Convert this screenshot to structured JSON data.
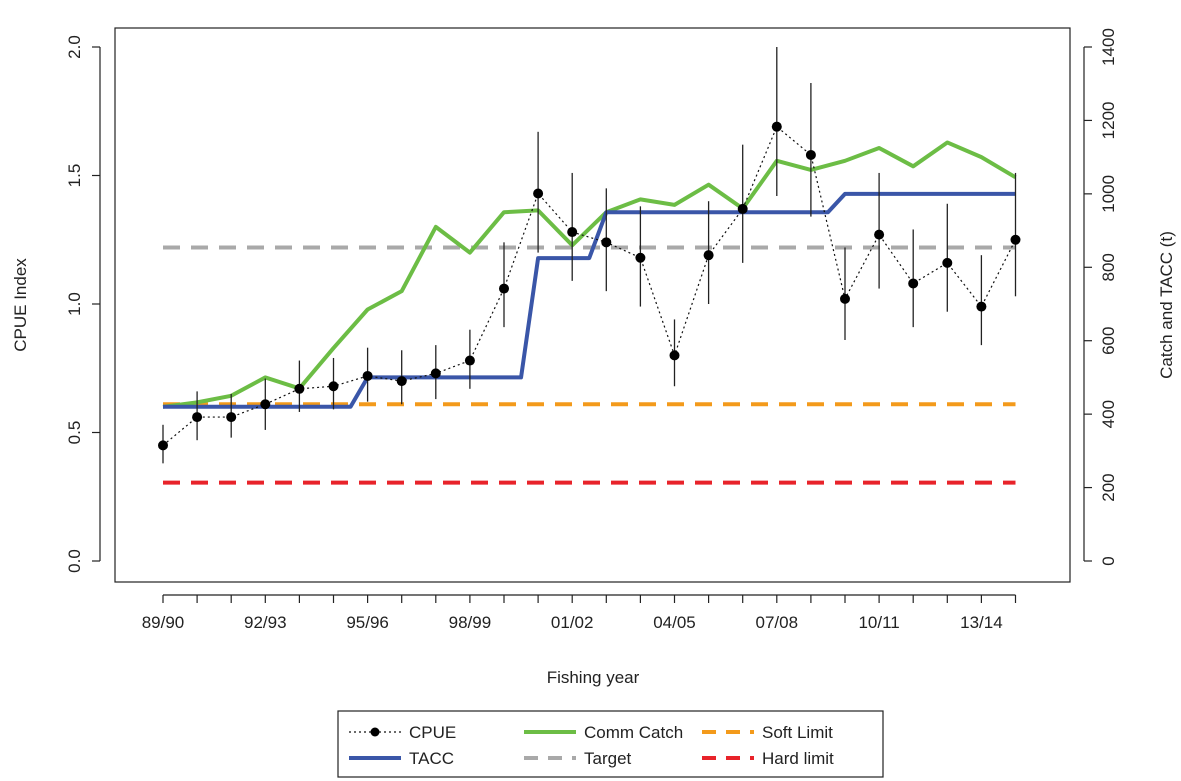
{
  "chart_data": {
    "type": "line",
    "xlabel": "Fishing year",
    "ylabel_left": "CPUE Index",
    "ylabel_right": "Catch and TACC (t)",
    "ylim_left": [
      0,
      2.0
    ],
    "ylim_right": [
      0,
      1400
    ],
    "left_ticks": [
      "0.0",
      "0.5",
      "1.0",
      "1.5",
      "2.0"
    ],
    "right_ticks": [
      "0",
      "200",
      "400",
      "600",
      "800",
      "1000",
      "1200",
      "1400"
    ],
    "x_tick_labels": [
      "89/90",
      "92/93",
      "95/96",
      "98/99",
      "01/02",
      "04/05",
      "07/08",
      "10/11",
      "13/14"
    ],
    "x_tick_years": [
      1989,
      1992,
      1995,
      1998,
      2001,
      2004,
      2007,
      2010,
      2013
    ],
    "x_years": [
      1989,
      1990,
      1991,
      1992,
      1993,
      1994,
      1995,
      1996,
      1997,
      1998,
      1999,
      2000,
      2001,
      2002,
      2003,
      2004,
      2005,
      2006,
      2007,
      2008,
      2009,
      2010,
      2011,
      2012,
      2013,
      2014
    ],
    "grid": false,
    "legend_position": "bottom-center",
    "series": [
      {
        "name": "CPUE",
        "axis": "left",
        "color": "#000000",
        "style": "dotted-with-points",
        "values": [
          0.45,
          0.56,
          0.56,
          0.61,
          0.67,
          0.68,
          0.72,
          0.7,
          0.73,
          0.78,
          1.06,
          1.43,
          1.28,
          1.24,
          1.18,
          0.8,
          1.19,
          1.37,
          1.69,
          1.58,
          1.02,
          1.27,
          1.08,
          1.16,
          0.99,
          1.25
        ],
        "error_low": [
          0.38,
          0.47,
          0.48,
          0.51,
          0.58,
          0.59,
          0.62,
          0.61,
          0.63,
          0.67,
          0.91,
          1.2,
          1.09,
          1.05,
          0.99,
          0.68,
          1.0,
          1.16,
          1.42,
          1.34,
          0.86,
          1.06,
          0.91,
          0.97,
          0.84,
          1.03
        ],
        "error_high": [
          0.53,
          0.66,
          0.65,
          0.71,
          0.78,
          0.79,
          0.83,
          0.82,
          0.84,
          0.9,
          1.24,
          1.67,
          1.51,
          1.45,
          1.38,
          0.94,
          1.4,
          1.62,
          2.0,
          1.86,
          1.22,
          1.51,
          1.29,
          1.39,
          1.19,
          1.51
        ]
      },
      {
        "name": "TACC",
        "axis": "right",
        "color": "#3a56a8",
        "style": "step",
        "values": [
          420,
          420,
          420,
          420,
          420,
          420,
          500,
          500,
          500,
          500,
          500,
          825,
          825,
          950,
          950,
          950,
          950,
          950,
          950,
          950,
          1000,
          1000,
          1000,
          1000,
          1000,
          1000
        ]
      },
      {
        "name": "Comm Catch",
        "axis": "right",
        "color": "#6cbd45",
        "style": "line",
        "values": [
          420,
          432,
          450,
          500,
          470,
          580,
          685,
          735,
          910,
          840,
          950,
          955,
          860,
          950,
          985,
          970,
          1025,
          960,
          1090,
          1065,
          1090,
          1125,
          1075,
          1140,
          1100,
          1045
        ]
      },
      {
        "name": "Target",
        "axis": "left",
        "color": "#a9a9a9",
        "style": "dashed",
        "value": 1.22
      },
      {
        "name": "Soft Limit",
        "axis": "left",
        "color": "#f39a1b",
        "style": "dashed",
        "value": 0.61
      },
      {
        "name": "Hard limit",
        "axis": "left",
        "color": "#e8232a",
        "style": "dashed",
        "value": 0.305
      }
    ],
    "legend": [
      {
        "label": "CPUE",
        "series": "CPUE"
      },
      {
        "label": "TACC",
        "series": "TACC"
      },
      {
        "label": "Comm Catch",
        "series": "Comm Catch"
      },
      {
        "label": "Target",
        "series": "Target"
      },
      {
        "label": "Soft Limit",
        "series": "Soft Limit"
      },
      {
        "label": "Hard limit",
        "series": "Hard limit"
      }
    ]
  }
}
